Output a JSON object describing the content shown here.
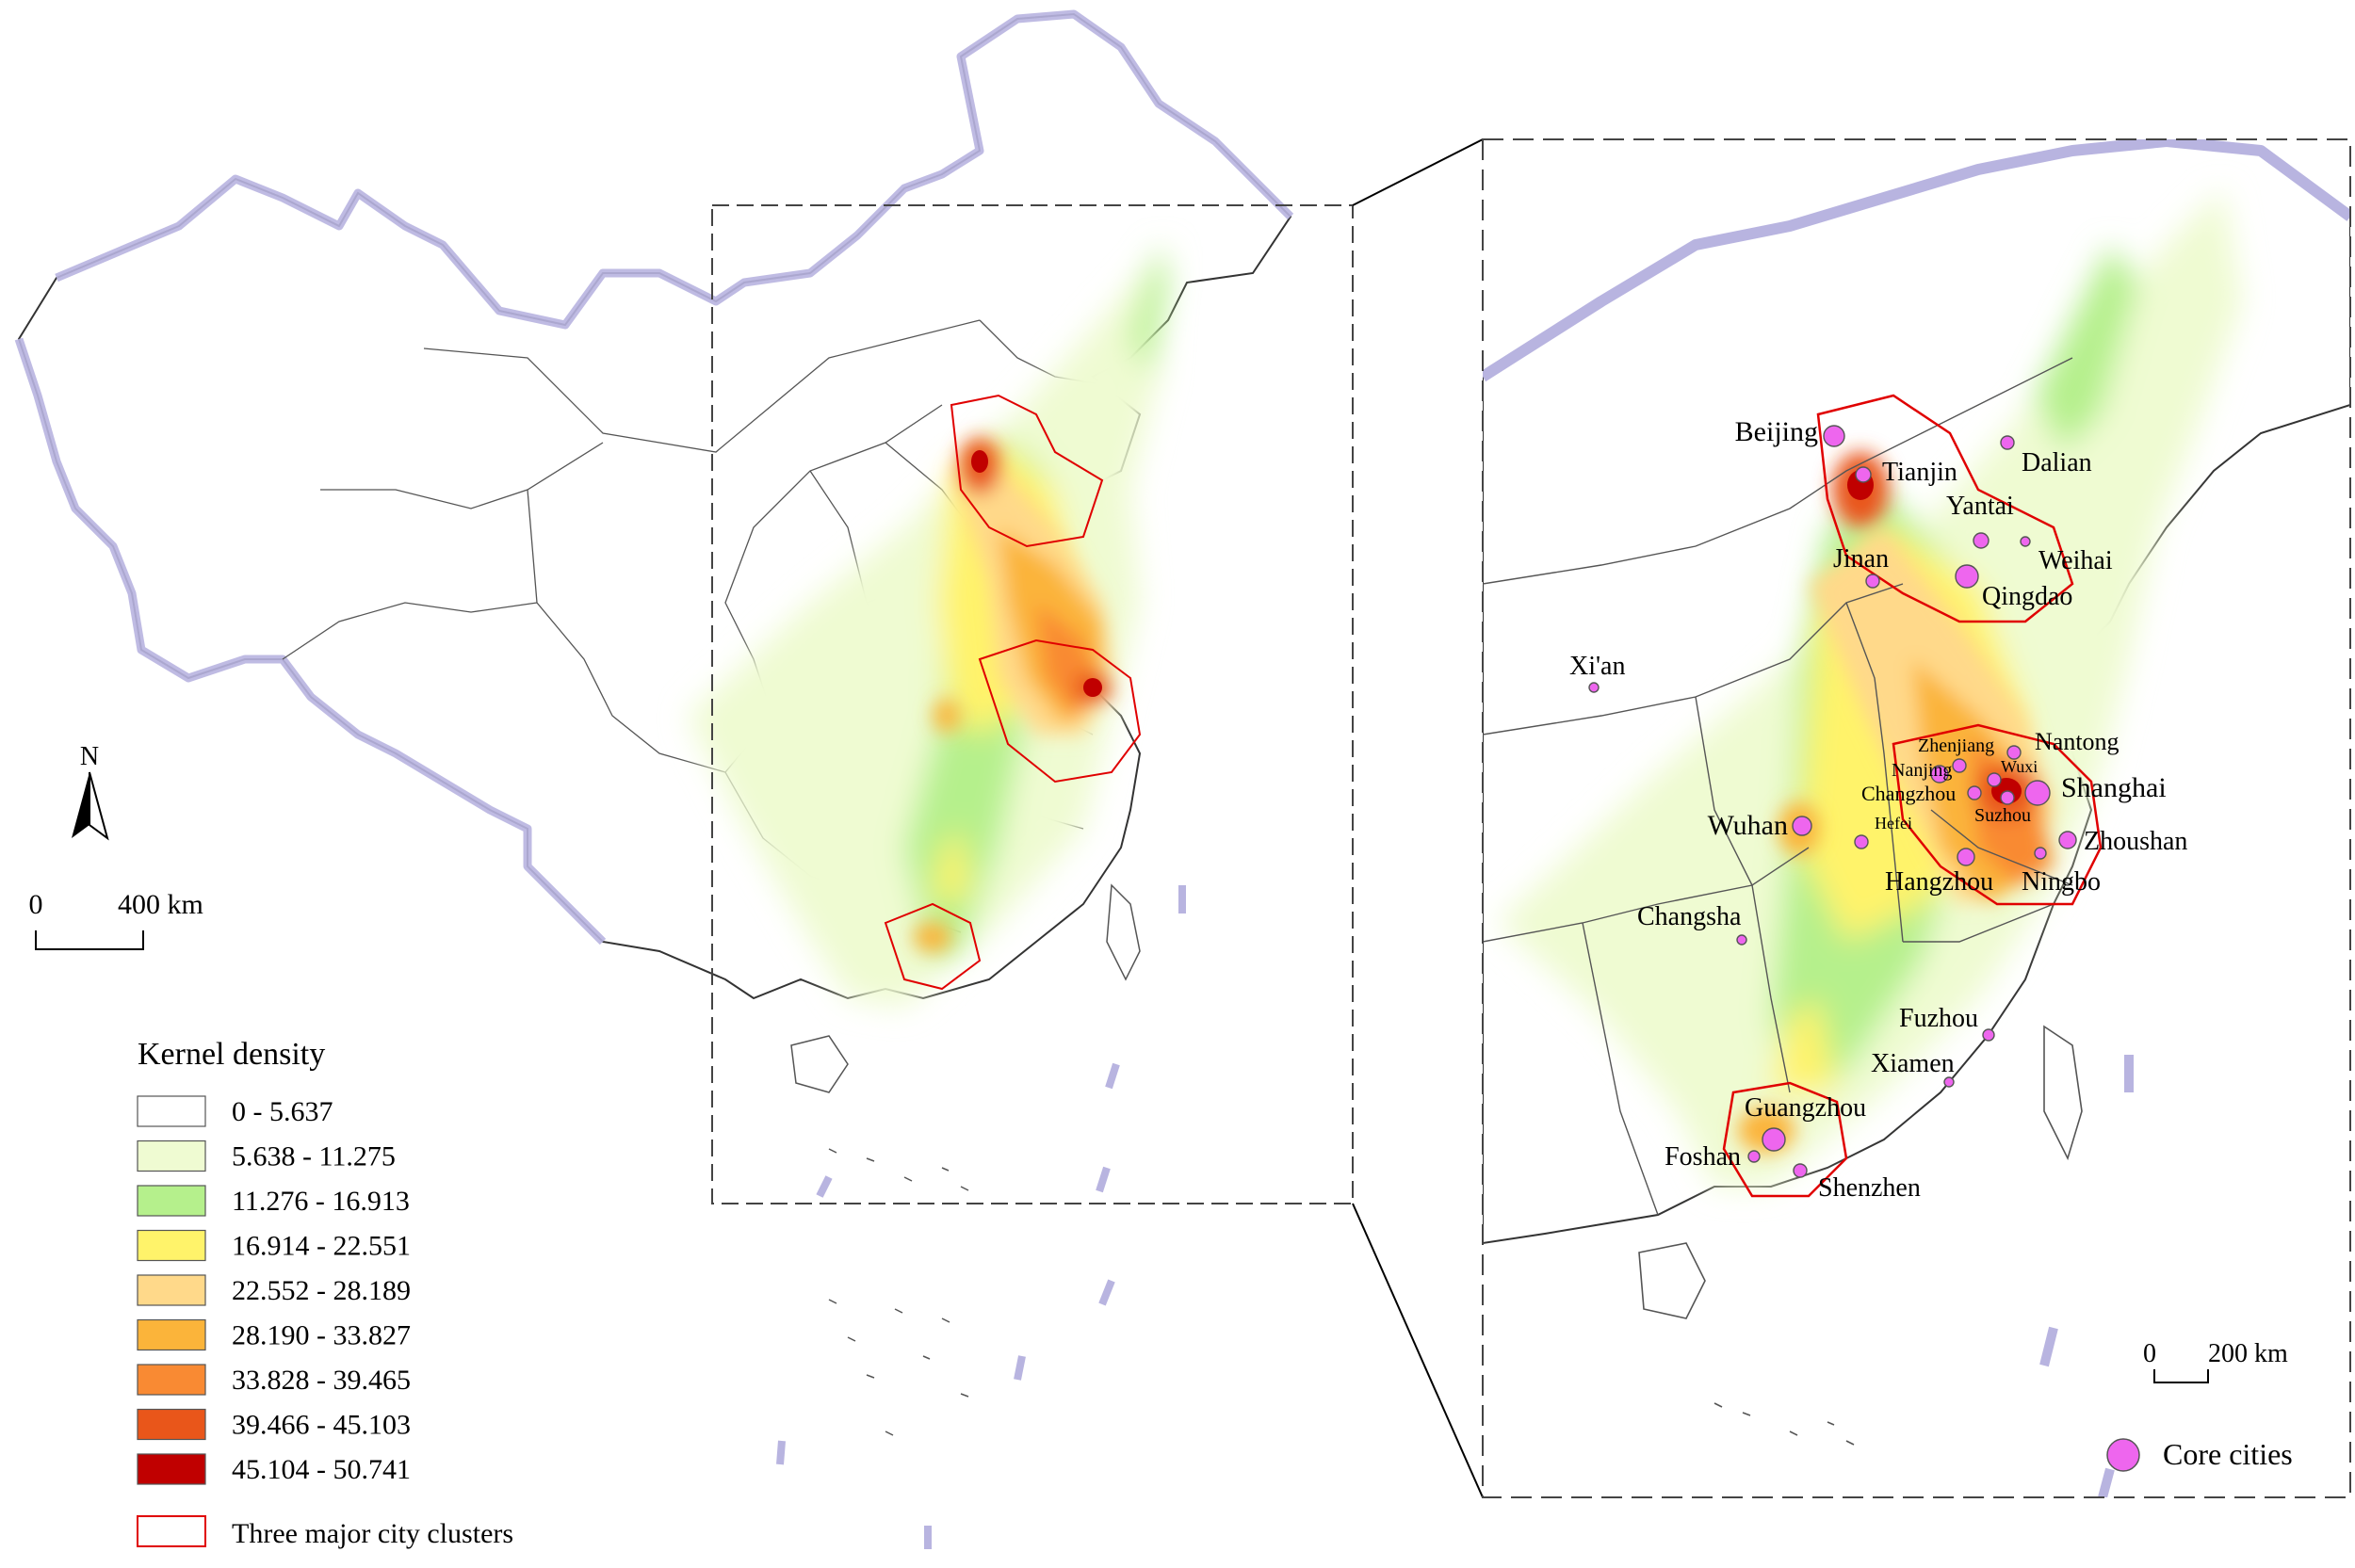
{
  "north_arrow": {
    "letter": "N"
  },
  "main_scale": {
    "zero": "0",
    "distance": "400 km"
  },
  "inset_scale": {
    "zero": "0",
    "distance": "200 km"
  },
  "legend": {
    "title": "Kernel density",
    "classes": [
      {
        "label": "0 - 5.637",
        "color": "#ffffff"
      },
      {
        "label": "5.638 - 11.275",
        "color": "#effbd2"
      },
      {
        "label": "11.276 - 16.913",
        "color": "#b5f08c"
      },
      {
        "label": "16.914 - 22.551",
        "color": "#fff36a"
      },
      {
        "label": "22.552 - 28.189",
        "color": "#ffd98a"
      },
      {
        "label": "28.190 - 33.827",
        "color": "#fbb43a"
      },
      {
        "label": "33.828 - 39.465",
        "color": "#f98a33"
      },
      {
        "label": "39.466 - 45.103",
        "color": "#e9561a"
      },
      {
        "label": "45.104 - 50.741",
        "color": "#c00000"
      }
    ],
    "clusters_label": "Three major city clusters",
    "clusters_color": "#e00000"
  },
  "inset_legend": {
    "core_cities_label": "Core cities",
    "core_city_color": "#ee66ee"
  },
  "cities": [
    {
      "name": "Beijing"
    },
    {
      "name": "Tianjin"
    },
    {
      "name": "Dalian"
    },
    {
      "name": "Yantai"
    },
    {
      "name": "Weihai"
    },
    {
      "name": "Jinan"
    },
    {
      "name": "Qingdao"
    },
    {
      "name": "Xi'an"
    },
    {
      "name": "Nantong"
    },
    {
      "name": "Zhenjiang"
    },
    {
      "name": "Nanjing"
    },
    {
      "name": "Wuxi"
    },
    {
      "name": "Changzhou"
    },
    {
      "name": "Shanghai"
    },
    {
      "name": "Suzhou"
    },
    {
      "name": "Hefei"
    },
    {
      "name": "Wuhan"
    },
    {
      "name": "Zhoushan"
    },
    {
      "name": "Hangzhou"
    },
    {
      "name": "Ningbo"
    },
    {
      "name": "Changsha"
    },
    {
      "name": "Fuzhou"
    },
    {
      "name": "Xiamen"
    },
    {
      "name": "Guangzhou"
    },
    {
      "name": "Foshan"
    },
    {
      "name": "Shenzhen"
    }
  ]
}
